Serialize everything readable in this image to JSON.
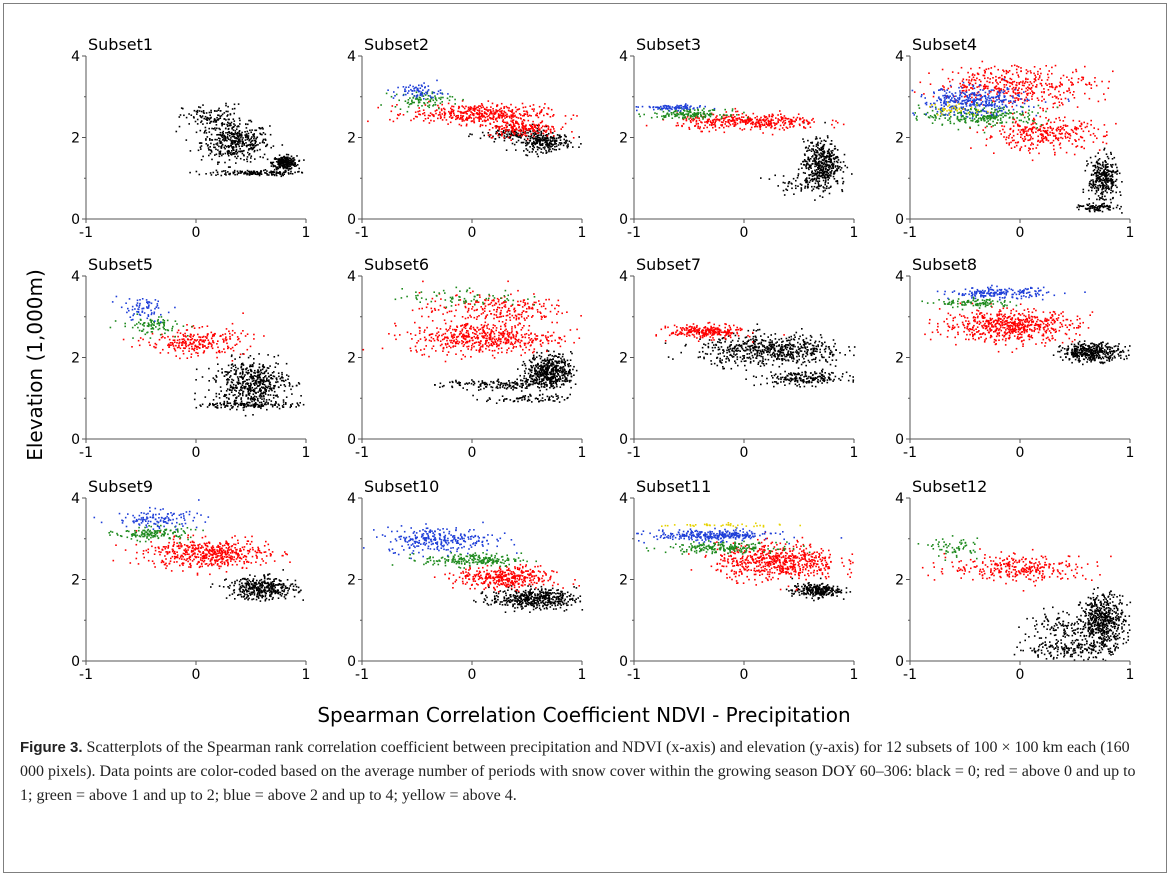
{
  "figure": {
    "ylabel": "Elevation (1,000m)",
    "xlabel": "Spearman Correlation Coefficient NDVI - Precipitation"
  },
  "caption": {
    "label": "Figure 3.",
    "text": " Scatterplots of the Spearman rank correlation coefficient between precipitation and NDVI (x-axis) and elevation (y-axis) for 12 subsets of 100 × 100 km each (160 000 pixels). Data points are color-coded based on the average number of periods with snow cover within the growing season DOY 60–306: black = 0; red = above 0 and up to 1; green = above 1 and up to 2; blue = above 2 and up to 4; yellow = above 4."
  },
  "colors": {
    "black": "#000000",
    "red": "#ff0000",
    "green": "#1e8a1e",
    "blue": "#1f3fd8",
    "yellow": "#e6d200"
  },
  "chart_data": [
    {
      "type": "scatter",
      "title": "Subset1",
      "xlim": [
        -1,
        1
      ],
      "ylim": [
        0,
        4
      ],
      "xticks": [
        "-1",
        "0",
        "1"
      ],
      "yticks": [
        "0",
        "2",
        "4"
      ],
      "series": [
        {
          "color": "black",
          "clusters": [
            [
              0.35,
              1.9,
              0.28,
              0.42,
              420
            ],
            [
              0.8,
              1.4,
              0.1,
              0.15,
              260
            ],
            [
              0.5,
              1.15,
              0.35,
              0.06,
              140
            ],
            [
              0.15,
              2.5,
              0.25,
              0.3,
              120
            ]
          ]
        }
      ]
    },
    {
      "type": "scatter",
      "title": "Subset2",
      "xlim": [
        -1,
        1
      ],
      "ylim": [
        0,
        4
      ],
      "xticks": [
        "-1",
        "0",
        "1"
      ],
      "yticks": [
        "0",
        "2",
        "4"
      ],
      "series": [
        {
          "color": "black",
          "clusters": [
            [
              0.65,
              1.9,
              0.22,
              0.2,
              240
            ],
            [
              0.4,
              2.1,
              0.3,
              0.15,
              120
            ]
          ]
        },
        {
          "color": "red",
          "clusters": [
            [
              0.05,
              2.6,
              0.55,
              0.22,
              420
            ],
            [
              0.45,
              2.25,
              0.3,
              0.2,
              200
            ]
          ]
        },
        {
          "color": "green",
          "clusters": [
            [
              -0.45,
              2.95,
              0.25,
              0.18,
              90
            ]
          ]
        },
        {
          "color": "blue",
          "clusters": [
            [
              -0.5,
              3.15,
              0.2,
              0.18,
              70
            ]
          ]
        }
      ]
    },
    {
      "type": "scatter",
      "title": "Subset3",
      "xlim": [
        -1,
        1
      ],
      "ylim": [
        0,
        4
      ],
      "xticks": [
        "-1",
        "0",
        "1"
      ],
      "yticks": [
        "0",
        "2",
        "4"
      ],
      "series": [
        {
          "color": "black",
          "clusters": [
            [
              0.7,
              1.4,
              0.15,
              0.5,
              420
            ],
            [
              0.55,
              0.9,
              0.25,
              0.25,
              90
            ]
          ]
        },
        {
          "color": "red",
          "clusters": [
            [
              0.05,
              2.4,
              0.6,
              0.18,
              380
            ]
          ]
        },
        {
          "color": "green",
          "clusters": [
            [
              -0.5,
              2.6,
              0.3,
              0.1,
              160
            ]
          ]
        },
        {
          "color": "blue",
          "clusters": [
            [
              -0.65,
              2.75,
              0.25,
              0.06,
              90
            ]
          ]
        }
      ]
    },
    {
      "type": "scatter",
      "title": "Subset4",
      "xlim": [
        -1,
        1
      ],
      "ylim": [
        0,
        4
      ],
      "xticks": [
        "-1",
        "0",
        "1"
      ],
      "yticks": [
        "0",
        "2",
        "4"
      ],
      "series": [
        {
          "color": "black",
          "clusters": [
            [
              0.75,
              1.0,
              0.12,
              0.5,
              320
            ],
            [
              0.7,
              0.3,
              0.15,
              0.08,
              80
            ]
          ]
        },
        {
          "color": "red",
          "clusters": [
            [
              -0.05,
              3.3,
              0.65,
              0.45,
              420
            ],
            [
              0.2,
              2.1,
              0.5,
              0.35,
              320
            ]
          ]
        },
        {
          "color": "green",
          "clusters": [
            [
              -0.35,
              2.55,
              0.5,
              0.22,
              260
            ]
          ]
        },
        {
          "color": "blue",
          "clusters": [
            [
              -0.45,
              2.9,
              0.45,
              0.3,
              360
            ]
          ]
        },
        {
          "color": "yellow",
          "clusters": [
            [
              -0.6,
              2.7,
              0.25,
              0.15,
              40
            ]
          ]
        }
      ]
    },
    {
      "type": "scatter",
      "title": "Subset5",
      "xlim": [
        -1,
        1
      ],
      "ylim": [
        0,
        4
      ],
      "xticks": [
        "-1",
        "0",
        "1"
      ],
      "yticks": [
        "0",
        "2",
        "4"
      ],
      "series": [
        {
          "color": "black",
          "clusters": [
            [
              0.5,
              1.4,
              0.3,
              0.5,
              520
            ],
            [
              0.5,
              0.85,
              0.4,
              0.08,
              140
            ]
          ]
        },
        {
          "color": "red",
          "clusters": [
            [
              0.0,
              2.4,
              0.4,
              0.3,
              260
            ]
          ]
        },
        {
          "color": "green",
          "clusters": [
            [
              -0.4,
              2.8,
              0.25,
              0.2,
              90
            ]
          ]
        },
        {
          "color": "blue",
          "clusters": [
            [
              -0.5,
              3.2,
              0.2,
              0.25,
              70
            ]
          ]
        }
      ]
    },
    {
      "type": "scatter",
      "title": "Subset6",
      "xlim": [
        -1,
        1
      ],
      "ylim": [
        0,
        4
      ],
      "xticks": [
        "-1",
        "0",
        "1"
      ],
      "yticks": [
        "0",
        "2",
        "4"
      ],
      "series": [
        {
          "color": "black",
          "clusters": [
            [
              0.7,
              1.7,
              0.18,
              0.35,
              460
            ],
            [
              0.3,
              1.35,
              0.5,
              0.12,
              180
            ],
            [
              0.5,
              1.0,
              0.35,
              0.1,
              80
            ]
          ]
        },
        {
          "color": "red",
          "clusters": [
            [
              0.1,
              2.5,
              0.6,
              0.35,
              520
            ],
            [
              0.2,
              3.2,
              0.6,
              0.35,
              240
            ]
          ]
        },
        {
          "color": "green",
          "clusters": [
            [
              -0.1,
              3.5,
              0.5,
              0.2,
              70
            ]
          ]
        }
      ]
    },
    {
      "type": "scatter",
      "title": "Subset7",
      "xlim": [
        -1,
        1
      ],
      "ylim": [
        0,
        4
      ],
      "xticks": [
        "-1",
        "0",
        "1"
      ],
      "yticks": [
        "0",
        "2",
        "4"
      ],
      "series": [
        {
          "color": "black",
          "clusters": [
            [
              0.25,
              2.2,
              0.6,
              0.35,
              620
            ],
            [
              0.55,
              1.5,
              0.35,
              0.15,
              200
            ]
          ]
        },
        {
          "color": "red",
          "clusters": [
            [
              -0.35,
              2.65,
              0.3,
              0.15,
              260
            ]
          ]
        }
      ]
    },
    {
      "type": "scatter",
      "title": "Subset8",
      "xlim": [
        -1,
        1
      ],
      "ylim": [
        0,
        4
      ],
      "xticks": [
        "-1",
        "0",
        "1"
      ],
      "yticks": [
        "0",
        "2",
        "4"
      ],
      "series": [
        {
          "color": "black",
          "clusters": [
            [
              0.65,
              2.15,
              0.25,
              0.2,
              380
            ]
          ]
        },
        {
          "color": "red",
          "clusters": [
            [
              -0.1,
              2.8,
              0.55,
              0.35,
              620
            ]
          ]
        },
        {
          "color": "green",
          "clusters": [
            [
              -0.4,
              3.35,
              0.3,
              0.1,
              100
            ]
          ]
        },
        {
          "color": "blue",
          "clusters": [
            [
              -0.2,
              3.6,
              0.4,
              0.12,
              180
            ]
          ]
        }
      ]
    },
    {
      "type": "scatter",
      "title": "Subset9",
      "xlim": [
        -1,
        1
      ],
      "ylim": [
        0,
        4
      ],
      "xticks": [
        "-1",
        "0",
        "1"
      ],
      "yticks": [
        "0",
        "2",
        "4"
      ],
      "series": [
        {
          "color": "black",
          "clusters": [
            [
              0.6,
              1.8,
              0.28,
              0.25,
              380
            ]
          ]
        },
        {
          "color": "red",
          "clusters": [
            [
              0.1,
              2.65,
              0.5,
              0.32,
              520
            ]
          ]
        },
        {
          "color": "green",
          "clusters": [
            [
              -0.4,
              3.15,
              0.3,
              0.15,
              140
            ]
          ]
        },
        {
          "color": "blue",
          "clusters": [
            [
              -0.35,
              3.5,
              0.35,
              0.2,
              120
            ]
          ]
        }
      ]
    },
    {
      "type": "scatter",
      "title": "Subset10",
      "xlim": [
        -1,
        1
      ],
      "ylim": [
        0,
        4
      ],
      "xticks": [
        "-1",
        "0",
        "1"
      ],
      "yticks": [
        "0",
        "2",
        "4"
      ],
      "series": [
        {
          "color": "black",
          "clusters": [
            [
              0.55,
              1.55,
              0.35,
              0.22,
              460
            ]
          ]
        },
        {
          "color": "red",
          "clusters": [
            [
              0.3,
              2.05,
              0.4,
              0.25,
              380
            ]
          ]
        },
        {
          "color": "green",
          "clusters": [
            [
              0.0,
              2.5,
              0.4,
              0.15,
              200
            ]
          ]
        },
        {
          "color": "blue",
          "clusters": [
            [
              -0.3,
              3.0,
              0.45,
              0.28,
              280
            ]
          ]
        }
      ]
    },
    {
      "type": "scatter",
      "title": "Subset11",
      "xlim": [
        -1,
        1
      ],
      "ylim": [
        0,
        4
      ],
      "xticks": [
        "-1",
        "0",
        "1"
      ],
      "yticks": [
        "0",
        "2",
        "4"
      ],
      "series": [
        {
          "color": "black",
          "clusters": [
            [
              0.65,
              1.75,
              0.2,
              0.15,
              260
            ]
          ]
        },
        {
          "color": "red",
          "clusters": [
            [
              0.3,
              2.45,
              0.5,
              0.4,
              620
            ]
          ]
        },
        {
          "color": "green",
          "clusters": [
            [
              -0.2,
              2.8,
              0.45,
              0.12,
              200
            ]
          ]
        },
        {
          "color": "blue",
          "clusters": [
            [
              -0.3,
              3.1,
              0.5,
              0.12,
              300
            ]
          ]
        },
        {
          "color": "yellow",
          "clusters": [
            [
              -0.2,
              3.35,
              0.5,
              0.04,
              40
            ]
          ]
        }
      ]
    },
    {
      "type": "scatter",
      "title": "Subset12",
      "xlim": [
        -1,
        1
      ],
      "ylim": [
        0,
        4
      ],
      "xticks": [
        "-1",
        "0",
        "1"
      ],
      "yticks": [
        "0",
        "2",
        "4"
      ],
      "series": [
        {
          "color": "black",
          "clusters": [
            [
              0.75,
              1.0,
              0.18,
              0.6,
              520
            ],
            [
              0.4,
              0.3,
              0.4,
              0.2,
              160
            ],
            [
              0.4,
              0.8,
              0.35,
              0.35,
              140
            ]
          ]
        },
        {
          "color": "red",
          "clusters": [
            [
              0.0,
              2.3,
              0.6,
              0.3,
              300
            ]
          ]
        },
        {
          "color": "green",
          "clusters": [
            [
              -0.6,
              2.8,
              0.2,
              0.2,
              60
            ]
          ]
        }
      ]
    }
  ]
}
